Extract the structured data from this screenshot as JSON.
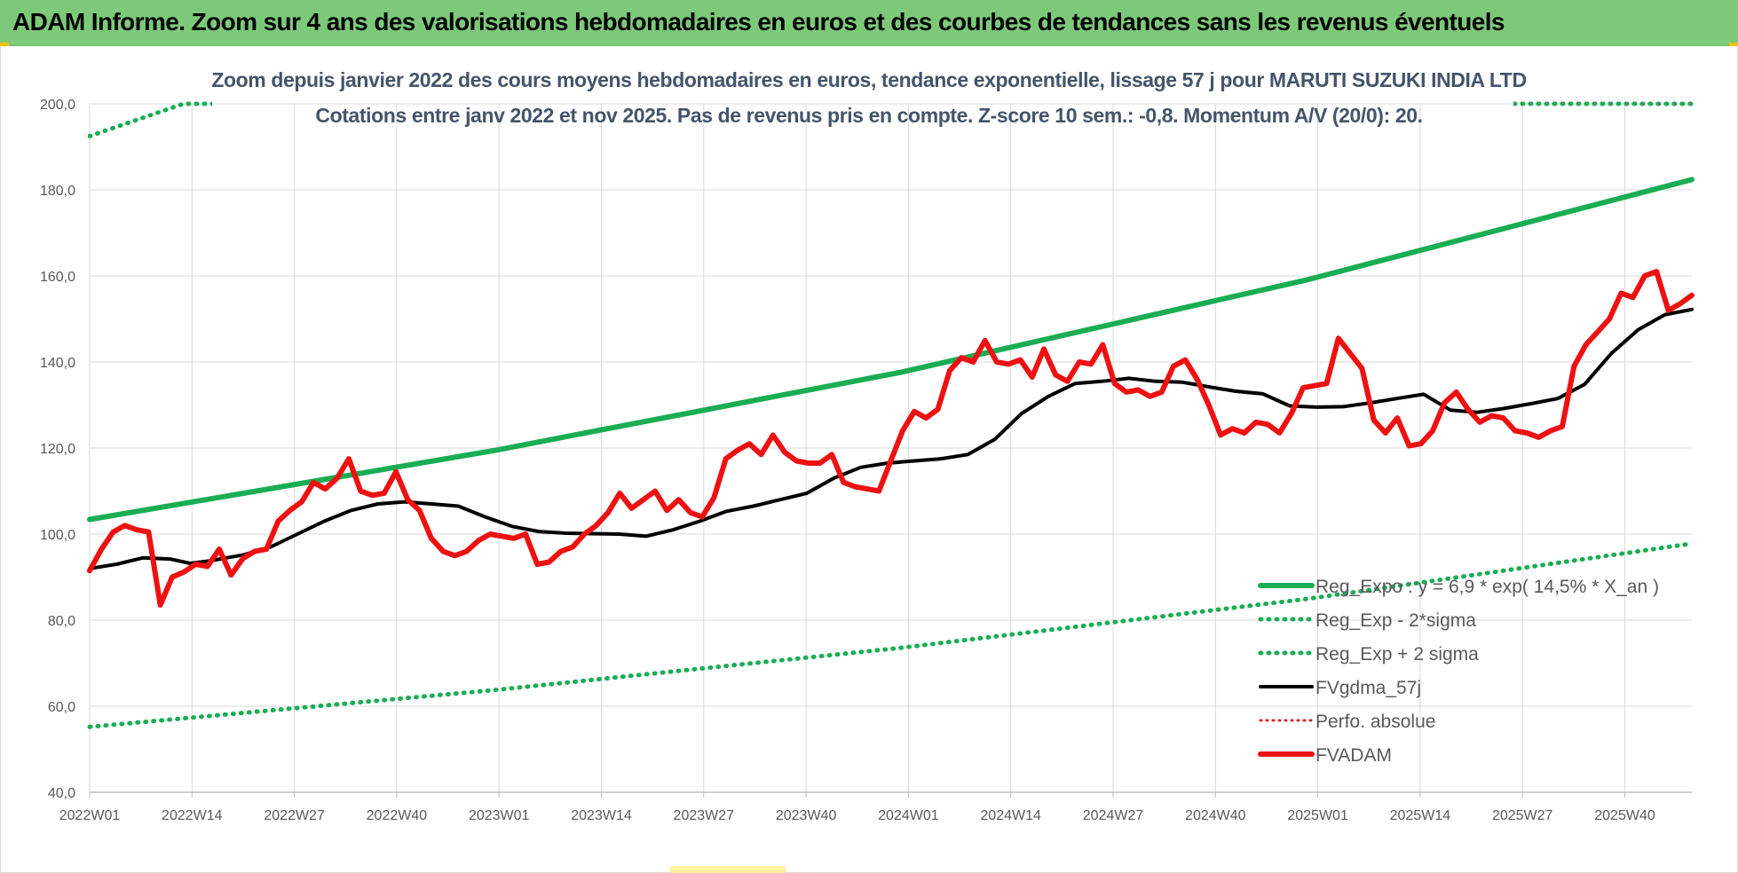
{
  "banner": {
    "title": "ADAM Informe. Zoom sur 4 ans des valorisations hebdomadaires en euros et des courbes de tendances sans les revenus éventuels"
  },
  "colors": {
    "banner_bg": "#7dc97a",
    "trend": "#1aad54",
    "band": "#1aad54",
    "fvgdma": "#000000",
    "perfo": "#d9242b",
    "fvadam": "#ee1111",
    "subtitle": "#44546a"
  },
  "chart_data": {
    "type": "line",
    "title": "Zoom depuis janvier 2022 des cours moyens hebdomadaires en euros, tendance exponentielle, lissage 57 j pour MARUTI SUZUKI INDIA LTD",
    "subtitle": "Cotations entre janv 2022 et nov 2025. Pas de revenus pris en compte. Z-score 10 sem.: -0,8. Momentum A/V (20/0): 20.",
    "xlabel": "",
    "ylabel": "",
    "ylim": [
      40,
      200
    ],
    "yticks": [
      "40,0",
      "60,0",
      "80,0",
      "100,0",
      "120,0",
      "140,0",
      "160,0",
      "180,0",
      "200,0"
    ],
    "xticks": [
      "2022W01",
      "2022W14",
      "2022W27",
      "2022W40",
      "2023W01",
      "2023W14",
      "2023W27",
      "2023W40",
      "2024W01",
      "2024W14",
      "2024W27",
      "2024W40",
      "2025W01",
      "2025W14",
      "2025W27",
      "2025W40"
    ],
    "x_range_weeks": [
      0,
      205
    ],
    "grid": true,
    "legend_position": "bottom-right",
    "series": [
      {
        "name": "Reg_Expo : y = 6,9 * exp( 14,5% *  X_an )",
        "style": "solid-thick",
        "points": [
          [
            0,
            103.4
          ],
          [
            52,
            119.5
          ],
          [
            104,
            137.7
          ],
          [
            156,
            159.2
          ],
          [
            205,
            182.4
          ]
        ]
      },
      {
        "name": "Reg_Exp - 2*sigma",
        "style": "dotted",
        "points": [
          [
            0,
            55.2
          ],
          [
            52,
            63.8
          ],
          [
            104,
            73.6
          ],
          [
            156,
            85.0
          ],
          [
            205,
            97.8
          ]
        ]
      },
      {
        "name": "Reg_Exp + 2 sigma",
        "style": "dotted",
        "points": [
          [
            0,
            192.5
          ],
          [
            12,
            200.0
          ],
          [
            205,
            200.0
          ]
        ]
      },
      {
        "name": "FVgdma_57j",
        "style": "solid",
        "points": [
          [
            0,
            92
          ],
          [
            4,
            93
          ],
          [
            8,
            94.5
          ],
          [
            12,
            94.2
          ],
          [
            15,
            93.2
          ],
          [
            18,
            93.8
          ],
          [
            23,
            95.2
          ],
          [
            27,
            97
          ],
          [
            31,
            100
          ],
          [
            35,
            103
          ],
          [
            39,
            105.5
          ],
          [
            43,
            107
          ],
          [
            47,
            107.5
          ],
          [
            51,
            107
          ],
          [
            55,
            106.5
          ],
          [
            59,
            104
          ],
          [
            63,
            101.8
          ],
          [
            67,
            100.6
          ],
          [
            71,
            100.2
          ],
          [
            75,
            100.1
          ],
          [
            79,
            100
          ],
          [
            83,
            99.5
          ],
          [
            87,
            101
          ],
          [
            91,
            103
          ],
          [
            95,
            105.3
          ],
          [
            99,
            106.5
          ],
          [
            103,
            108
          ],
          [
            107,
            109.5
          ],
          [
            111,
            113
          ],
          [
            115,
            115.5
          ],
          [
            119,
            116.5
          ],
          [
            123,
            117
          ],
          [
            127,
            117.5
          ],
          [
            131,
            118.5
          ],
          [
            135,
            122
          ],
          [
            139,
            128
          ],
          [
            143,
            132
          ],
          [
            147,
            135
          ],
          [
            151,
            135.5
          ],
          [
            155,
            136.2
          ],
          [
            159,
            135.5
          ],
          [
            163,
            135.3
          ],
          [
            167,
            134.2
          ],
          [
            171,
            133.2
          ],
          [
            175,
            132.6
          ],
          [
            179,
            129.8
          ],
          [
            183,
            129.5
          ],
          [
            187,
            129.6
          ],
          [
            191,
            130.5
          ],
          [
            195,
            131.5
          ],
          [
            199,
            132.5
          ],
          [
            203,
            128.8
          ],
          [
            207,
            128.3
          ],
          [
            211,
            129.2
          ],
          [
            215,
            130.3
          ],
          [
            219,
            131.5
          ],
          [
            223,
            134.8
          ],
          [
            227,
            142
          ],
          [
            231,
            147.5
          ],
          [
            235,
            151
          ],
          [
            239,
            152.2
          ]
        ]
      },
      {
        "name": "Perfo. absolue",
        "style": "dotted",
        "points": []
      },
      {
        "name": "FVADAM",
        "style": "solid-thick",
        "points": [
          [
            0,
            91.5
          ],
          [
            2,
            96.5
          ],
          [
            4,
            100.5
          ],
          [
            6,
            102
          ],
          [
            8,
            101
          ],
          [
            10,
            100.5
          ],
          [
            12,
            83.5
          ],
          [
            14,
            90
          ],
          [
            16,
            91.2
          ],
          [
            18,
            93
          ],
          [
            20,
            92.5
          ],
          [
            22,
            96.5
          ],
          [
            24,
            90.5
          ],
          [
            26,
            94.3
          ],
          [
            28,
            96
          ],
          [
            30,
            96.5
          ],
          [
            32,
            103
          ],
          [
            34,
            105.5
          ],
          [
            36,
            107.5
          ],
          [
            38,
            112
          ],
          [
            40,
            110.5
          ],
          [
            42,
            113
          ],
          [
            44,
            117.5
          ],
          [
            46,
            110
          ],
          [
            48,
            109
          ],
          [
            50,
            109.5
          ],
          [
            52,
            114.5
          ],
          [
            54,
            108
          ],
          [
            56,
            105.5
          ],
          [
            58,
            99
          ],
          [
            60,
            96
          ],
          [
            62,
            95
          ],
          [
            64,
            96
          ],
          [
            66,
            98.5
          ],
          [
            68,
            100
          ],
          [
            70,
            99.5
          ],
          [
            72,
            99
          ],
          [
            74,
            100
          ],
          [
            76,
            93
          ],
          [
            78,
            93.5
          ],
          [
            80,
            96
          ],
          [
            82,
            97
          ],
          [
            84,
            100
          ],
          [
            86,
            102
          ],
          [
            88,
            105
          ],
          [
            90,
            109.5
          ],
          [
            92,
            106
          ],
          [
            94,
            108
          ],
          [
            96,
            110
          ],
          [
            98,
            105.5
          ],
          [
            100,
            108
          ],
          [
            102,
            105
          ],
          [
            104,
            104
          ],
          [
            106,
            108.5
          ],
          [
            108,
            117.5
          ],
          [
            110,
            119.5
          ],
          [
            112,
            121
          ],
          [
            114,
            118.5
          ],
          [
            116,
            123
          ],
          [
            118,
            119
          ],
          [
            120,
            117
          ],
          [
            122,
            116.5
          ],
          [
            124,
            116.5
          ],
          [
            126,
            118.5
          ],
          [
            128,
            112
          ],
          [
            130,
            111
          ],
          [
            132,
            110.5
          ],
          [
            134,
            110
          ],
          [
            136,
            117
          ],
          [
            138,
            124
          ],
          [
            140,
            128.5
          ],
          [
            142,
            127
          ],
          [
            144,
            129
          ],
          [
            146,
            138
          ],
          [
            148,
            141
          ],
          [
            150,
            140
          ],
          [
            152,
            145
          ],
          [
            154,
            140
          ],
          [
            156,
            139.5
          ],
          [
            158,
            140.5
          ],
          [
            160,
            136.5
          ],
          [
            162,
            143
          ],
          [
            164,
            137
          ],
          [
            166,
            135.5
          ],
          [
            168,
            140
          ],
          [
            170,
            139.5
          ],
          [
            172,
            144
          ],
          [
            174,
            135
          ],
          [
            176,
            133
          ],
          [
            178,
            133.5
          ],
          [
            180,
            132
          ],
          [
            182,
            133
          ],
          [
            184,
            139
          ],
          [
            186,
            140.5
          ],
          [
            188,
            136
          ],
          [
            190,
            130
          ],
          [
            192,
            123
          ],
          [
            194,
            124.5
          ],
          [
            196,
            123.5
          ],
          [
            198,
            126
          ],
          [
            200,
            125.5
          ],
          [
            202,
            123.5
          ],
          [
            204,
            128
          ],
          [
            206,
            134
          ],
          [
            208,
            134.5
          ],
          [
            210,
            135
          ],
          [
            212,
            145.5
          ],
          [
            214,
            142
          ],
          [
            216,
            138.5
          ],
          [
            218,
            126.5
          ],
          [
            220,
            123.5
          ],
          [
            222,
            127
          ],
          [
            224,
            120.5
          ],
          [
            226,
            121
          ],
          [
            228,
            124
          ],
          [
            230,
            130.5
          ],
          [
            232,
            133
          ],
          [
            234,
            129
          ],
          [
            236,
            126
          ],
          [
            238,
            127.5
          ],
          [
            240,
            127
          ],
          [
            242,
            124
          ],
          [
            244,
            123.5
          ],
          [
            246,
            122.5
          ],
          [
            248,
            124
          ],
          [
            250,
            125
          ],
          [
            252,
            139
          ],
          [
            254,
            144
          ],
          [
            256,
            147
          ],
          [
            258,
            150
          ],
          [
            260,
            156
          ],
          [
            262,
            155
          ],
          [
            264,
            160
          ],
          [
            266,
            161
          ],
          [
            268,
            152
          ],
          [
            270,
            153.5
          ],
          [
            272,
            155.5
          ]
        ]
      }
    ]
  }
}
